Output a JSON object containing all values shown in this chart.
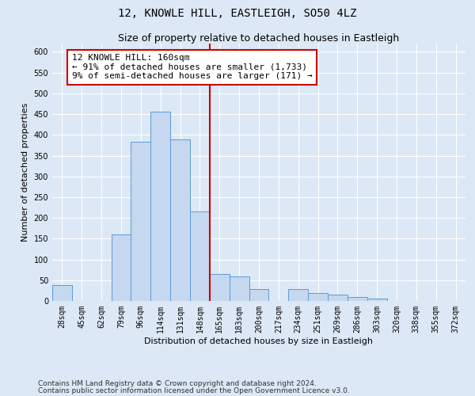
{
  "title": "12, KNOWLE HILL, EASTLEIGH, SO50 4LZ",
  "subtitle": "Size of property relative to detached houses in Eastleigh",
  "xlabel": "Distribution of detached houses by size in Eastleigh",
  "ylabel": "Number of detached properties",
  "categories": [
    "28sqm",
    "45sqm",
    "62sqm",
    "79sqm",
    "96sqm",
    "114sqm",
    "131sqm",
    "148sqm",
    "165sqm",
    "183sqm",
    "200sqm",
    "217sqm",
    "234sqm",
    "251sqm",
    "269sqm",
    "286sqm",
    "303sqm",
    "320sqm",
    "338sqm",
    "355sqm",
    "372sqm"
  ],
  "values": [
    38,
    0,
    0,
    160,
    383,
    455,
    390,
    215,
    65,
    60,
    28,
    0,
    28,
    20,
    15,
    10,
    5,
    0,
    0,
    0,
    0
  ],
  "bar_color": "#c5d8ef",
  "bar_edge_color": "#5b9bd5",
  "vline_x_index": 8,
  "vline_color": "#cc0000",
  "annotation_text": "12 KNOWLE HILL: 160sqm\n← 91% of detached houses are smaller (1,733)\n9% of semi-detached houses are larger (171) →",
  "annotation_box_color": "#cc0000",
  "ylim": [
    0,
    620
  ],
  "yticks": [
    0,
    50,
    100,
    150,
    200,
    250,
    300,
    350,
    400,
    450,
    500,
    550,
    600
  ],
  "footer_line1": "Contains HM Land Registry data © Crown copyright and database right 2024.",
  "footer_line2": "Contains public sector information licensed under the Open Government Licence v3.0.",
  "background_color": "#dce8f5",
  "plot_bg_color": "#dce8f5",
  "grid_color": "#ffffff",
  "title_fontsize": 10,
  "subtitle_fontsize": 9,
  "label_fontsize": 8,
  "tick_fontsize": 7,
  "annot_fontsize": 8,
  "footer_fontsize": 6.5
}
